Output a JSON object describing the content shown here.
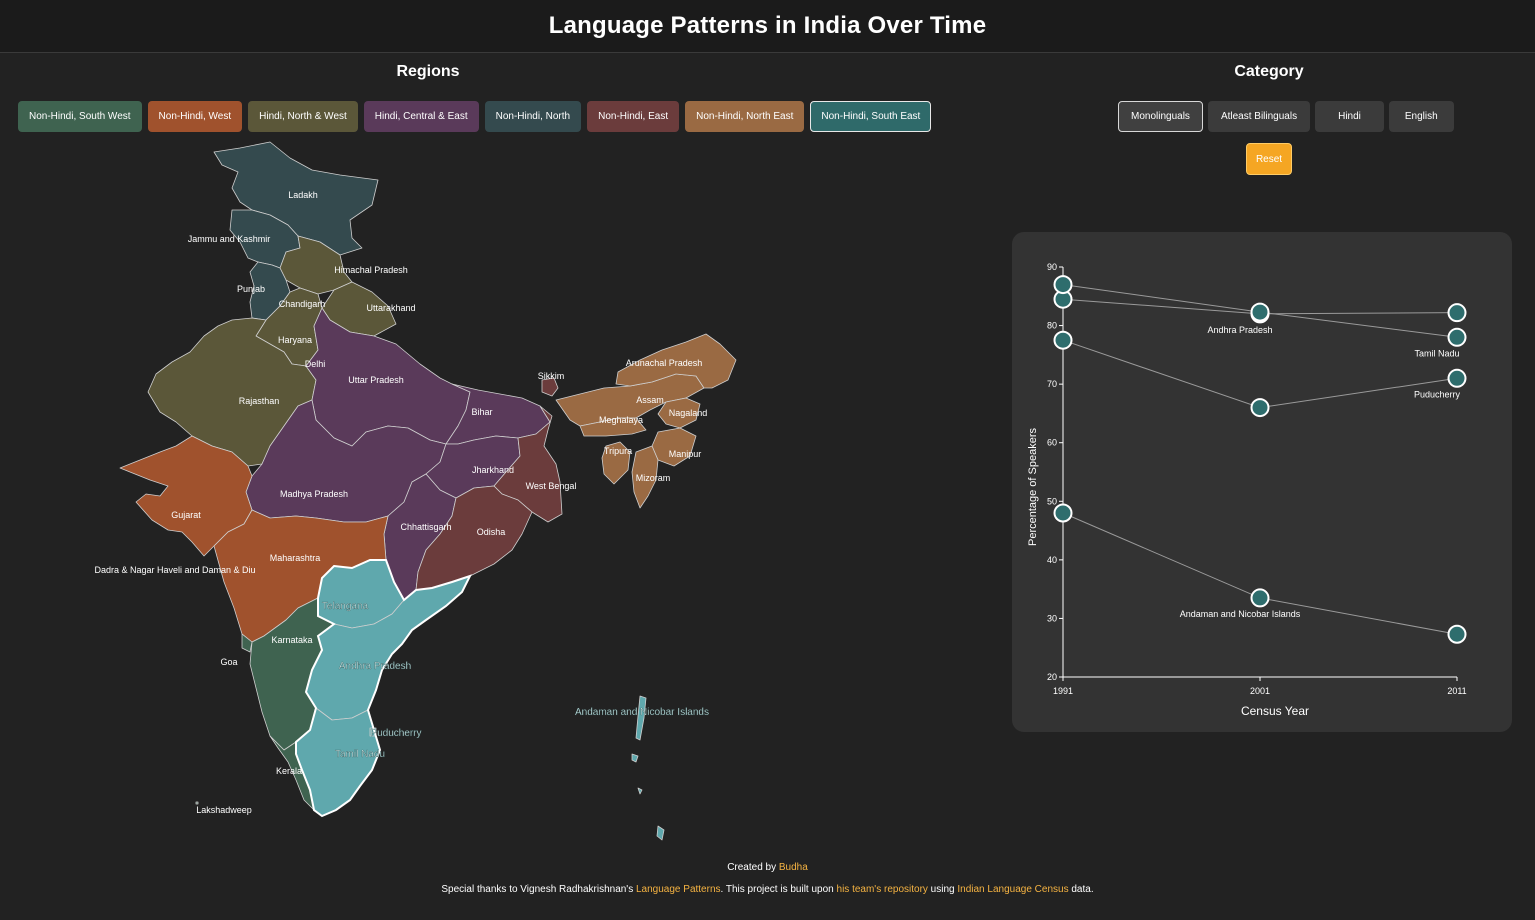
{
  "header": {
    "title": "Language Patterns in India Over Time"
  },
  "regions": {
    "title": "Regions",
    "buttons": [
      {
        "label": "Non-Hindi, South West",
        "color": "#3f6350"
      },
      {
        "label": "Non-Hindi, West",
        "color": "#a0522d"
      },
      {
        "label": "Hindi, North & West",
        "color": "#5b5739"
      },
      {
        "label": "Hindi, Central & East",
        "color": "#5a3a5a"
      },
      {
        "label": "Non-Hindi, North",
        "color": "#344a4e"
      },
      {
        "label": "Non-Hindi, East",
        "color": "#6b3c3c"
      },
      {
        "label": "Non-Hindi, North East",
        "color": "#9a6a43"
      },
      {
        "label": "Non-Hindi, South East",
        "color": "#2f6a6a",
        "active": true
      }
    ]
  },
  "category": {
    "title": "Category",
    "buttons": [
      {
        "label": "Monolinguals",
        "active": true
      },
      {
        "label": "Atleast Bilinguals"
      },
      {
        "label": "Hindi"
      },
      {
        "label": "English"
      }
    ],
    "reset_label": "Reset"
  },
  "map": {
    "colors": {
      "south_west": "#3f6350",
      "west": "#a0522d",
      "north_west": "#5b5739",
      "central_east": "#5a3a5a",
      "north": "#344a4e",
      "east": "#6b3c3c",
      "north_east": "#9a6a43",
      "south_east": "#5fa8ad"
    },
    "labels": {
      "ladakh": "Ladakh",
      "jk": "Jammu and Kashmir",
      "hp": "Himachal Pradesh",
      "punjab": "Punjab",
      "chandigarh": "Chandigarh",
      "uttarakhand": "Uttarakhand",
      "haryana": "Haryana",
      "delhi": "Delhi",
      "up": "Uttar Pradesh",
      "rajasthan": "Rajasthan",
      "sikkim": "Sikkim",
      "arunachal": "Arunachal Pradesh",
      "assam": "Assam",
      "bihar": "Bihar",
      "meghalaya": "Meghalaya",
      "nagaland": "Nagaland",
      "tripura": "Tripura",
      "manipur": "Manipur",
      "jharkhand": "Jharkhand",
      "wb": "West Bengal",
      "mizoram": "Mizoram",
      "mp": "Madhya Pradesh",
      "gujarat": "Gujarat",
      "chhattisgarh": "Chhattisgarh",
      "odisha": "Odisha",
      "maharashtra": "Maharashtra",
      "dnh": "Dadra & Nagar Haveli and Daman & Diu",
      "telangana": "Telangana",
      "karnataka": "Karnataka",
      "goa": "Goa",
      "ap": "Andhra Pradesh",
      "andaman": "Andaman and Nicobar Islands",
      "puducherry": "Puducherry",
      "tn": "Tamil Nadu",
      "kerala": "Kerala",
      "lakshadweep": "Lakshadweep"
    }
  },
  "chart_data": {
    "type": "line",
    "x": [
      1991,
      2001,
      2011
    ],
    "xlabel": "Census Year",
    "ylabel": "Percentage of Speakers",
    "ylim": [
      20,
      90
    ],
    "yticks": [
      20,
      30,
      40,
      50,
      60,
      70,
      80,
      90
    ],
    "series": [
      {
        "name": "Andhra Pradesh",
        "values": [
          84.5,
          82,
          82.2
        ]
      },
      {
        "name": "Tamil Nadu",
        "values": [
          87,
          82.3,
          78
        ]
      },
      {
        "name": "Puducherry",
        "values": [
          77.5,
          66,
          71
        ]
      },
      {
        "name": "Andaman and Nicobar Islands",
        "values": [
          48,
          33.5,
          27.3
        ]
      }
    ],
    "point_color": "#2e6d6d",
    "line_color": "#9a9a9a"
  },
  "footer": {
    "created_prefix": "Created by ",
    "created_author": "Budha",
    "thanks_1": "Special thanks to Vignesh Radhakrishnan's ",
    "thanks_link1": "Language Patterns",
    "thanks_2": ". This project is built upon ",
    "thanks_link2": "his team's repository",
    "thanks_3": " using ",
    "thanks_link3": "Indian Language Census",
    "thanks_4": " data."
  }
}
